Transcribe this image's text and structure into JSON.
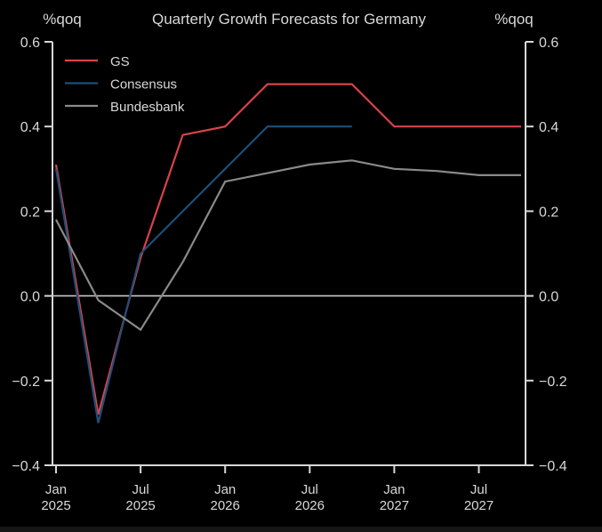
{
  "chart_data": {
    "type": "line",
    "title": "Quarterly Growth Forecasts for Germany",
    "ylabel_left": "%qoq",
    "ylabel_right": "%qoq",
    "xlabel": "",
    "ylim": [
      -0.4,
      0.6
    ],
    "yticks": [
      -0.4,
      -0.2,
      0.0,
      0.2,
      0.4,
      0.6
    ],
    "ytick_labels": [
      "−0.4",
      "−0.2",
      "0.0",
      "0.2",
      "0.4",
      "0.6"
    ],
    "x": [
      "Q1 2025",
      "Q2 2025",
      "Q3 2025",
      "Q4 2025",
      "Q1 2026",
      "Q2 2026",
      "Q3 2026",
      "Q4 2026",
      "Q1 2027",
      "Q2 2027",
      "Q3 2027",
      "Q4 2027"
    ],
    "xticks": [
      {
        "index": 0,
        "line1": "Jan",
        "line2": "2025"
      },
      {
        "index": 2,
        "line1": "Jul",
        "line2": "2025"
      },
      {
        "index": 4,
        "line1": "Jan",
        "line2": "2026"
      },
      {
        "index": 6,
        "line1": "Jul",
        "line2": "2026"
      },
      {
        "index": 8,
        "line1": "Jan",
        "line2": "2027"
      },
      {
        "index": 10,
        "line1": "Jul",
        "line2": "2027"
      }
    ],
    "zero_line": true,
    "grid": false,
    "legend_position": "top-left",
    "series": [
      {
        "name": "GS",
        "color": "#d9434a",
        "values": [
          0.31,
          -0.28,
          0.09,
          0.38,
          0.4,
          0.5,
          0.5,
          0.5,
          0.4,
          0.4,
          0.4,
          0.4
        ]
      },
      {
        "name": "Consensus",
        "color": "#1f4e79",
        "values": [
          0.3,
          -0.3,
          0.1,
          0.2,
          0.3,
          0.4,
          0.4,
          0.4,
          null,
          null,
          null,
          null
        ]
      },
      {
        "name": "Bundesbank",
        "color": "#8a8a8a",
        "values": [
          0.18,
          -0.01,
          -0.08,
          0.08,
          0.27,
          0.29,
          0.31,
          0.32,
          0.3,
          0.295,
          0.285,
          0.285
        ]
      }
    ]
  }
}
